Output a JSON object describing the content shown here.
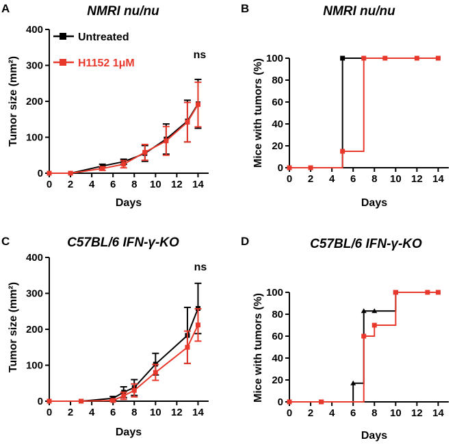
{
  "colors": {
    "untreated": "#000000",
    "h1152": "#e8382c"
  },
  "chart_data": [
    {
      "id": "A",
      "panel_label": "A",
      "type": "line",
      "title": "NMRI nu/nu",
      "xlabel": "Days",
      "ylabel": "Tumor size (mm²)",
      "xlim": [
        0,
        15
      ],
      "ylim": [
        0,
        400
      ],
      "xticks": [
        0,
        2,
        4,
        6,
        8,
        10,
        12,
        14
      ],
      "yticks": [
        0,
        100,
        200,
        300,
        400
      ],
      "annotation": "ns",
      "legend": [
        "Untreated",
        "H1152 1μM"
      ],
      "series": [
        {
          "name": "Untreated",
          "color": "#000000",
          "x": [
            0,
            2,
            5,
            7,
            9,
            11,
            13,
            14
          ],
          "y": [
            0,
            0,
            20,
            32,
            55,
            95,
            145,
            193
          ],
          "err": [
            0,
            0,
            5,
            7,
            22,
            42,
            58,
            68
          ]
        },
        {
          "name": "H1152 1μM",
          "color": "#e8382c",
          "x": [
            0,
            2,
            5,
            7,
            9,
            11,
            13,
            14
          ],
          "y": [
            0,
            0,
            13,
            25,
            58,
            90,
            142,
            191
          ],
          "err": [
            0,
            0,
            5,
            10,
            22,
            40,
            55,
            62
          ]
        }
      ]
    },
    {
      "id": "B",
      "panel_label": "B",
      "type": "step",
      "title": "NMRI nu/nu",
      "xlabel": "Days",
      "ylabel": "Mice with tumors (%)",
      "xlim": [
        0,
        15
      ],
      "ylim": [
        0,
        110
      ],
      "xticks": [
        0,
        2,
        4,
        6,
        8,
        10,
        12,
        14
      ],
      "yticks": [
        0,
        20,
        40,
        60,
        80,
        100
      ],
      "series": [
        {
          "name": "Untreated",
          "color": "#000000",
          "x": [
            0,
            5,
            14
          ],
          "y": [
            0,
            100,
            100
          ]
        },
        {
          "name": "H1152 1μM",
          "color": "#e8382c",
          "x": [
            0,
            2,
            5,
            7,
            9,
            12,
            14
          ],
          "y": [
            0,
            0,
            15,
            100,
            100,
            100,
            100
          ]
        }
      ]
    },
    {
      "id": "C",
      "panel_label": "C",
      "type": "line",
      "title": "C57BL/6 IFN-γ-KO",
      "xlabel": "Days",
      "ylabel": "Tumor size (mm²)",
      "xlim": [
        0,
        15
      ],
      "ylim": [
        0,
        400
      ],
      "xticks": [
        0,
        2,
        4,
        6,
        8,
        10,
        12,
        14
      ],
      "yticks": [
        0,
        100,
        200,
        300,
        400
      ],
      "annotation": "ns",
      "series": [
        {
          "name": "Untreated",
          "color": "#000000",
          "x": [
            0,
            3,
            6,
            7,
            8,
            10,
            13,
            14
          ],
          "y": [
            0,
            0,
            8,
            25,
            38,
            103,
            183,
            258
          ],
          "err": [
            0,
            0,
            5,
            15,
            22,
            30,
            78,
            70
          ]
        },
        {
          "name": "H1152 1μM",
          "color": "#e8382c",
          "x": [
            0,
            3,
            6,
            7,
            8,
            10,
            13,
            14
          ],
          "y": [
            0,
            0,
            2,
            15,
            30,
            80,
            150,
            212
          ],
          "err": [
            0,
            0,
            3,
            10,
            18,
            22,
            45,
            45
          ]
        }
      ]
    },
    {
      "id": "D",
      "panel_label": "D",
      "type": "step",
      "title": "C57BL/6 IFN-γ-KO",
      "xlabel": "Days",
      "ylabel": "Mice with tumors (%)",
      "xlim": [
        0,
        15
      ],
      "ylim": [
        0,
        110
      ],
      "xticks": [
        0,
        2,
        4,
        6,
        8,
        10,
        12,
        14
      ],
      "yticks": [
        0,
        20,
        40,
        60,
        80,
        100
      ],
      "series": [
        {
          "name": "Untreated",
          "color": "#000000",
          "x": [
            0,
            3,
            6,
            7,
            8,
            10,
            14
          ],
          "y": [
            0,
            0,
            17,
            83,
            83,
            100,
            100
          ]
        },
        {
          "name": "H1152 1μM",
          "color": "#e8382c",
          "x": [
            0,
            3,
            7,
            8,
            10,
            13,
            14
          ],
          "y": [
            0,
            0,
            60,
            70,
            100,
            100,
            100
          ]
        }
      ]
    }
  ]
}
